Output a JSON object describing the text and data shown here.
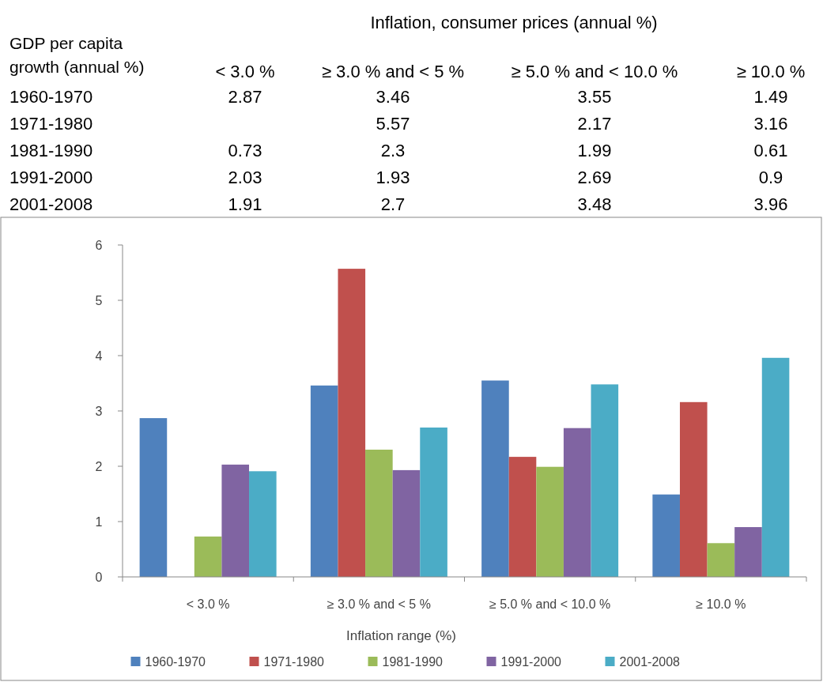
{
  "chart_data": {
    "type": "bar",
    "title": "Inflation, consumer prices (annual %)",
    "annotations": [
      "GDP per capita growth (annual %)"
    ],
    "xlabel": "Inflation range (%)",
    "categories": [
      "< 3.0 %",
      "≥ 3.0 % and < 5 %",
      "≥ 5.0 % and < 10.0 %",
      "≥ 10.0 %"
    ],
    "series": [
      {
        "name": "1960-1970",
        "color": "#4f81bd",
        "values": [
          2.87,
          3.46,
          3.55,
          1.49
        ]
      },
      {
        "name": "1971-1980",
        "color": "#c0504d",
        "values": [
          null,
          5.57,
          2.17,
          3.16
        ]
      },
      {
        "name": "1981-1990",
        "color": "#9bbb59",
        "values": [
          0.73,
          2.3,
          1.99,
          0.61
        ]
      },
      {
        "name": "1991-2000",
        "color": "#8064a2",
        "values": [
          2.03,
          1.93,
          2.69,
          0.9
        ]
      },
      {
        "name": "2001-2008",
        "color": "#4bacc6",
        "values": [
          1.91,
          2.7,
          3.48,
          3.96
        ]
      }
    ],
    "ylim": [
      0,
      6
    ],
    "yticks": [
      0,
      1,
      2,
      3,
      4,
      5,
      6
    ],
    "grid": false,
    "legend": "bottom",
    "data_labels": true
  }
}
